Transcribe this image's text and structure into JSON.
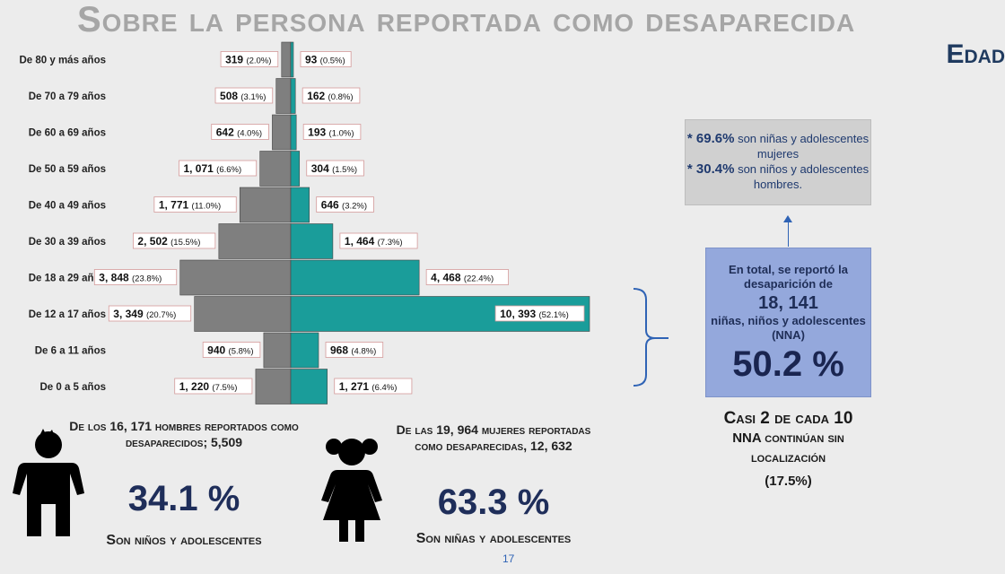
{
  "title": "Sobre la persona reportada como desaparecida",
  "subtitle": "Edad",
  "chart_data": {
    "type": "bar",
    "categories": [
      "De 80 y más años",
      "De 70 a 79 años",
      "De 60 a 69 años",
      "De 50 a 59 años",
      "De 40 a 49 años",
      "De 30 a 39 años",
      "De 18 a 29 años",
      "De 12 a 17 años",
      "De 6 a 11 años",
      "De 0 a 5 años"
    ],
    "series": [
      {
        "side": "left",
        "color": "#7f7f7f",
        "values": [
          319,
          508,
          642,
          1071,
          1771,
          2502,
          3848,
          3349,
          940,
          1220
        ],
        "labels": [
          "319",
          "508",
          "642",
          "1, 071",
          "1, 771",
          "2, 502",
          "3, 848",
          "3, 349",
          "940",
          "1, 220"
        ],
        "pct": [
          "(2.0%)",
          "(3.1%)",
          "(4.0%)",
          "(6.6%)",
          "(11.0%)",
          "(15.5%)",
          "(23.8%)",
          "(20.7%)",
          "(5.8%)",
          "(7.5%)"
        ]
      },
      {
        "side": "right",
        "color": "#1a9d9a",
        "values": [
          93,
          162,
          193,
          304,
          646,
          1464,
          4468,
          10393,
          968,
          1271
        ],
        "labels": [
          "93",
          "162",
          "193",
          "304",
          "646",
          "1, 464",
          "4, 468",
          "10, 393",
          "968",
          "1, 271"
        ],
        "pct": [
          "(0.5%)",
          "(0.8%)",
          "(1.0%)",
          "(1.5%)",
          "(3.2%)",
          "(7.3%)",
          "(22.4%)",
          "(52.1%)",
          "(4.8%)",
          "(6.4%)"
        ]
      }
    ]
  },
  "note": {
    "line1_pct": "* 69.6%",
    "line1_text": " son niñas y adolescentes mujeres",
    "line2_pct": "* 30.4%",
    "line2_text": " son niños y adolescentes hombres."
  },
  "total": {
    "text1": "En total, se reportó la desaparición de",
    "count": "18, 141",
    "text2": "niñas, niños y adolescentes (NNA)",
    "pct": "50.2 %"
  },
  "casi": {
    "line1": "Casi 2 de cada 10",
    "line2": "NNA continúan sin localización",
    "line3": "(17.5%)"
  },
  "boys": {
    "text": "De los 16, 171 hombres reportados como desaparecidos; 5,509",
    "pct": "34.1 %",
    "foot": "Son niños y adolescentes"
  },
  "girls": {
    "text": "De las 19, 964 mujeres reportadas como desaparecidas, 12, 632",
    "pct": "63.3 %",
    "foot": "Son niñas y adolescentes"
  },
  "page_number": "17",
  "colors": {
    "male": "#7f7f7f",
    "female": "#1a9d9a",
    "accent": "#1f2e5a"
  }
}
